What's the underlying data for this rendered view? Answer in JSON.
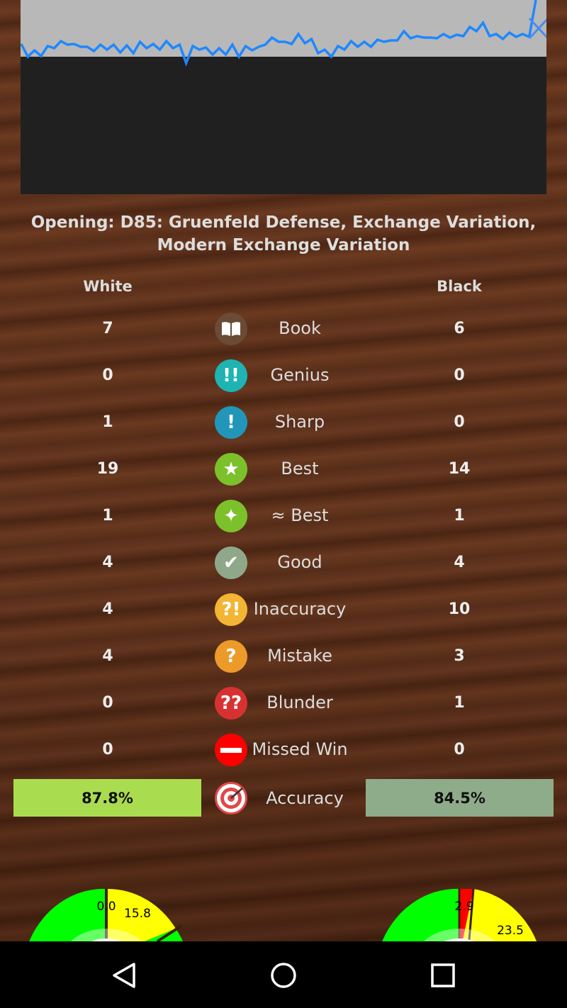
{
  "chart_data": {
    "type": "line",
    "title": "",
    "series": [
      {
        "values": [
          18,
          0,
          9,
          1,
          15,
          12,
          22,
          17,
          18,
          14,
          14,
          8,
          17,
          10,
          17,
          6,
          16,
          5,
          21,
          12,
          18,
          10,
          22,
          12,
          17,
          -9,
          15,
          10,
          13,
          3,
          12,
          3,
          17,
          0,
          15,
          9,
          14,
          17,
          27,
          21,
          21,
          18,
          32,
          19,
          25,
          5,
          10,
          0,
          15,
          10,
          22,
          14,
          21,
          14,
          24,
          21,
          23,
          23,
          36,
          26,
          29,
          27,
          27,
          26,
          32,
          27,
          31,
          29,
          42,
          36,
          48,
          29,
          32,
          25,
          34,
          28,
          32,
          28,
          80
        ]
      }
    ],
    "end_marker": "X",
    "colors": {
      "line": "#1e88ff",
      "upper_bg": "#b8b8b8",
      "lower_bg": "#202020"
    }
  },
  "opening": "Opening: D85: Gruenfeld Defense, Exchange Variation, Modern Exchange Variation",
  "headers": {
    "white": "White",
    "black": "Black"
  },
  "rows": [
    {
      "label": "Book",
      "white": "7",
      "black": "6",
      "icon": "book-icon",
      "color": "#6b4a36",
      "glyph": "📖"
    },
    {
      "label": "Genius",
      "white": "0",
      "black": "0",
      "icon": "double-exclamation-icon",
      "color": "#1fb3b3",
      "glyph": "!!"
    },
    {
      "label": "Sharp",
      "white": "1",
      "black": "0",
      "icon": "exclamation-icon",
      "color": "#2196b8",
      "glyph": "!"
    },
    {
      "label": "Best",
      "white": "19",
      "black": "14",
      "icon": "star-icon",
      "color": "#7cc12b",
      "glyph": "★"
    },
    {
      "label": "≈ Best",
      "white": "1",
      "black": "1",
      "icon": "sparkle-icon",
      "color": "#7cc12b",
      "glyph": "✦"
    },
    {
      "label": "Good",
      "white": "4",
      "black": "4",
      "icon": "check-icon",
      "color": "#8fa88a",
      "glyph": "✔"
    },
    {
      "label": "Inaccuracy",
      "white": "4",
      "black": "10",
      "icon": "interrobang-icon",
      "color": "#f2b534",
      "glyph": "?!"
    },
    {
      "label": "Mistake",
      "white": "4",
      "black": "3",
      "icon": "question-icon",
      "color": "#ec9a2a",
      "glyph": "?"
    },
    {
      "label": "Blunder",
      "white": "0",
      "black": "1",
      "icon": "double-question-icon",
      "color": "#d63232",
      "glyph": "??"
    },
    {
      "label": "Missed Win",
      "white": "0",
      "black": "0",
      "icon": "minus-icon",
      "color": "#ff0000",
      "glyph": "—"
    }
  ],
  "accuracy": {
    "label": "Accuracy",
    "white": "87.8%",
    "black": "84.5%",
    "white_color": "#aadc50",
    "black_color": "#8fac8a"
  },
  "gauges": [
    {
      "labels": [
        "0.0",
        "15.8"
      ]
    },
    {
      "labels": [
        "2.9",
        "23.5"
      ]
    }
  ]
}
